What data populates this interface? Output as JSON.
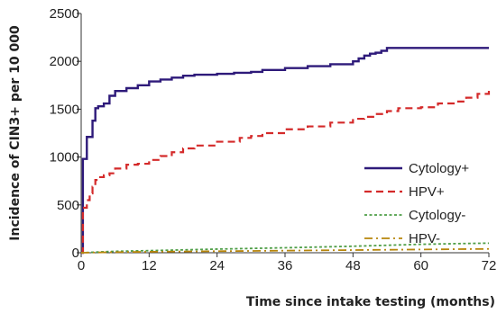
{
  "chart_data": {
    "type": "line",
    "title": "",
    "xlabel": "Time since intake testing (months)",
    "ylabel": "Incidence of CIN3+ per 10 000",
    "xlim": [
      0,
      72
    ],
    "ylim": [
      0,
      2500
    ],
    "xticks": [
      0,
      12,
      24,
      36,
      48,
      60,
      72
    ],
    "yticks": [
      0,
      500,
      1000,
      1500,
      2000,
      2500
    ],
    "grid": false,
    "legend_position": "center-right",
    "series": [
      {
        "name": "Cytology+",
        "color": "#2e1a7a",
        "dash": "solid",
        "step": true,
        "x": [
          0,
          0.3,
          1,
          2,
          2.5,
          3,
          4,
          5,
          6,
          8,
          10,
          12,
          14,
          16,
          18,
          20,
          24,
          27,
          30,
          32,
          36,
          40,
          44,
          48,
          49,
          50,
          51,
          52,
          53,
          54,
          60,
          66,
          72
        ],
        "y": [
          0,
          980,
          1210,
          1380,
          1510,
          1530,
          1560,
          1640,
          1690,
          1720,
          1750,
          1790,
          1810,
          1830,
          1850,
          1860,
          1870,
          1880,
          1890,
          1910,
          1930,
          1950,
          1970,
          2000,
          2030,
          2060,
          2080,
          2090,
          2110,
          2140,
          2140,
          2140,
          2140
        ]
      },
      {
        "name": "HPV+",
        "color": "#d42a2a",
        "dash": "dashed",
        "step": true,
        "x": [
          0,
          0.3,
          1,
          1.5,
          2,
          2.5,
          3,
          4,
          5,
          6,
          8,
          10,
          12,
          14,
          16,
          18,
          20,
          24,
          28,
          30,
          32,
          36,
          40,
          44,
          48,
          50,
          52,
          54,
          56,
          60,
          63,
          66,
          68,
          70,
          72
        ],
        "y": [
          0,
          470,
          550,
          620,
          690,
          760,
          790,
          810,
          830,
          880,
          920,
          930,
          970,
          1010,
          1050,
          1090,
          1120,
          1160,
          1200,
          1220,
          1250,
          1290,
          1320,
          1360,
          1400,
          1420,
          1450,
          1480,
          1510,
          1520,
          1560,
          1580,
          1620,
          1660,
          1700
        ]
      },
      {
        "name": "Cytology-",
        "color": "#4f9e47",
        "dash": "dotted",
        "step": false,
        "x": [
          0,
          6,
          12,
          18,
          24,
          30,
          36,
          42,
          48,
          54,
          60,
          66,
          72
        ],
        "y": [
          0,
          15,
          22,
          30,
          38,
          45,
          52,
          60,
          68,
          78,
          88,
          95,
          100
        ]
      },
      {
        "name": "HPV-",
        "color": "#b8860b",
        "dash": "dashdot",
        "step": false,
        "x": [
          0,
          6,
          12,
          18,
          24,
          30,
          36,
          42,
          48,
          54,
          60,
          66,
          72
        ],
        "y": [
          0,
          6,
          10,
          13,
          16,
          19,
          22,
          25,
          28,
          31,
          34,
          37,
          40
        ]
      }
    ]
  }
}
